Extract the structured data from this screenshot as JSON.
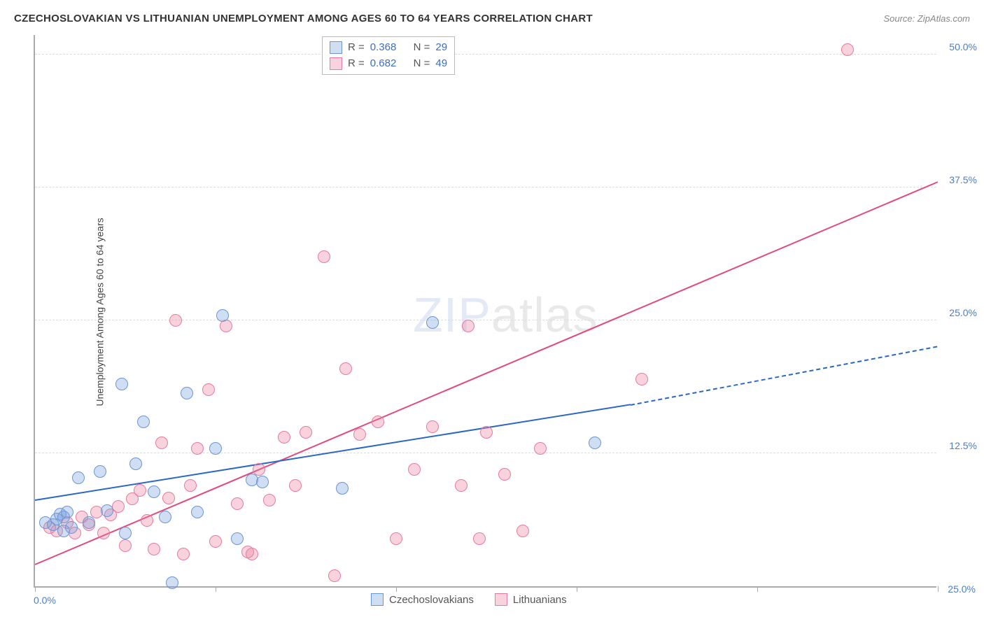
{
  "title": "CZECHOSLOVAKIAN VS LITHUANIAN UNEMPLOYMENT AMONG AGES 60 TO 64 YEARS CORRELATION CHART",
  "source": "Source: ZipAtlas.com",
  "y_axis_label": "Unemployment Among Ages 60 to 64 years",
  "chart": {
    "type": "scatter",
    "xlim": [
      0,
      25
    ],
    "ylim": [
      0,
      52
    ],
    "x_ticks": [
      0,
      5,
      10,
      15,
      20,
      25
    ],
    "x_tick_labels": {
      "0": "0.0%",
      "25": "25.0%"
    },
    "y_gridlines": [
      12.5,
      25.0,
      37.5,
      50.0
    ],
    "y_tick_labels": [
      "12.5%",
      "25.0%",
      "37.5%",
      "50.0%"
    ],
    "background_color": "#ffffff",
    "grid_color": "#dddddd",
    "axis_color": "#aaaaaa",
    "tick_label_color": "#4a7ec9",
    "watermark": {
      "zip": "ZIP",
      "atlas": "atlas"
    }
  },
  "series": {
    "czech": {
      "label": "Czechoslovakians",
      "color_fill": "rgba(120,160,220,0.35)",
      "color_stroke": "#6a95d6",
      "marker_radius": 9,
      "R": "0.368",
      "N": "29",
      "regression": {
        "x1": 0,
        "y1": 8.0,
        "x2": 16.5,
        "y2": 17.0,
        "extend_x2": 25,
        "extend_y2": 22.5,
        "color": "#2b68c4",
        "width": 2
      },
      "points": [
        [
          0.3,
          6.0
        ],
        [
          0.5,
          5.8
        ],
        [
          0.6,
          6.3
        ],
        [
          0.7,
          6.8
        ],
        [
          0.8,
          5.2
        ],
        [
          0.8,
          6.5
        ],
        [
          0.9,
          7.0
        ],
        [
          1.0,
          5.5
        ],
        [
          1.2,
          10.2
        ],
        [
          1.5,
          6.0
        ],
        [
          1.8,
          10.8
        ],
        [
          2.0,
          7.1
        ],
        [
          2.4,
          19.0
        ],
        [
          2.5,
          5.0
        ],
        [
          2.8,
          11.5
        ],
        [
          3.0,
          15.5
        ],
        [
          3.3,
          8.9
        ],
        [
          3.6,
          6.5
        ],
        [
          3.8,
          0.3
        ],
        [
          4.2,
          18.2
        ],
        [
          4.5,
          7.0
        ],
        [
          5.0,
          13.0
        ],
        [
          5.2,
          25.5
        ],
        [
          5.6,
          4.5
        ],
        [
          6.0,
          10.0
        ],
        [
          6.3,
          9.8
        ],
        [
          8.5,
          9.2
        ],
        [
          11.0,
          24.8
        ],
        [
          15.5,
          13.5
        ]
      ]
    },
    "lith": {
      "label": "Lithuanians",
      "color_fill": "rgba(235,130,160,0.35)",
      "color_stroke": "#e87aa0",
      "marker_radius": 9,
      "R": "0.682",
      "N": "49",
      "regression": {
        "x1": 0,
        "y1": 2.0,
        "x2": 25,
        "y2": 38.0,
        "color": "#e14b7b",
        "width": 2
      },
      "points": [
        [
          0.4,
          5.5
        ],
        [
          0.6,
          5.2
        ],
        [
          0.9,
          6.0
        ],
        [
          1.1,
          5.0
        ],
        [
          1.3,
          6.5
        ],
        [
          1.5,
          5.8
        ],
        [
          1.7,
          7.0
        ],
        [
          1.9,
          5.0
        ],
        [
          2.1,
          6.7
        ],
        [
          2.3,
          7.5
        ],
        [
          2.5,
          3.8
        ],
        [
          2.7,
          8.2
        ],
        [
          2.9,
          9.0
        ],
        [
          3.1,
          6.2
        ],
        [
          3.3,
          3.5
        ],
        [
          3.5,
          13.5
        ],
        [
          3.7,
          8.3
        ],
        [
          3.9,
          25.0
        ],
        [
          4.1,
          3.0
        ],
        [
          4.3,
          9.5
        ],
        [
          4.5,
          13.0
        ],
        [
          4.8,
          18.5
        ],
        [
          5.0,
          4.2
        ],
        [
          5.3,
          24.5
        ],
        [
          5.6,
          7.8
        ],
        [
          5.9,
          3.2
        ],
        [
          6.2,
          11.0
        ],
        [
          6.5,
          8.1
        ],
        [
          6.9,
          14.0
        ],
        [
          7.2,
          9.5
        ],
        [
          7.5,
          14.5
        ],
        [
          8.0,
          31.0
        ],
        [
          8.3,
          1.0
        ],
        [
          8.6,
          20.5
        ],
        [
          9.0,
          14.3
        ],
        [
          9.5,
          15.5
        ],
        [
          10.0,
          4.5
        ],
        [
          10.5,
          11.0
        ],
        [
          11.0,
          15.0
        ],
        [
          11.8,
          9.5
        ],
        [
          12.0,
          24.5
        ],
        [
          12.3,
          4.5
        ],
        [
          12.5,
          14.5
        ],
        [
          13.0,
          10.5
        ],
        [
          13.5,
          5.2
        ],
        [
          14.0,
          13.0
        ],
        [
          16.8,
          19.5
        ],
        [
          22.5,
          50.5
        ],
        [
          6.0,
          3.0
        ]
      ]
    }
  },
  "stats_box": {
    "R_label": "R =",
    "N_label": "N ="
  },
  "legend": {
    "items": [
      "czech",
      "lith"
    ]
  }
}
